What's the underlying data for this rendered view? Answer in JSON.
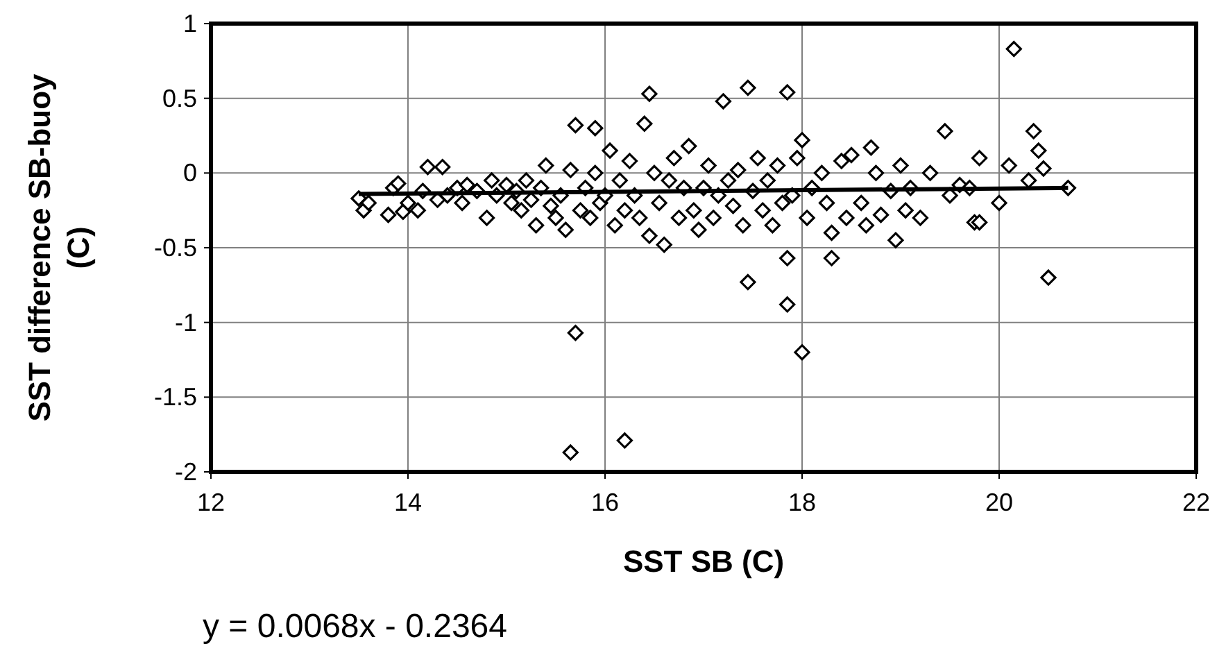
{
  "chart_data": {
    "type": "scatter",
    "xlabel": "SST SB (C)",
    "ylabel": "SST difference SB-buoy (C)",
    "annotations": [
      "y = 0.0068x - 0.2364"
    ],
    "xlim": [
      12,
      22
    ],
    "ylim": [
      -2,
      1
    ],
    "xticks": [
      12,
      14,
      16,
      18,
      20,
      22
    ],
    "yticks": [
      -2,
      -1.5,
      -1,
      -0.5,
      0,
      0.5,
      1
    ],
    "grid": true,
    "series": [
      {
        "marker": "diamond",
        "color": "#000000",
        "x": [
          13.5,
          13.55,
          13.6,
          13.8,
          13.85,
          13.9,
          13.95,
          14.0,
          14.1,
          14.15,
          14.2,
          14.3,
          14.35,
          14.4,
          14.5,
          14.55,
          14.6,
          14.7,
          14.8,
          14.85,
          14.9,
          15.0,
          15.05,
          15.1,
          15.15,
          15.2,
          15.25,
          15.3,
          15.35,
          15.4,
          15.45,
          15.5,
          15.55,
          15.6,
          15.65,
          15.65,
          15.7,
          15.7,
          15.75,
          15.8,
          15.85,
          15.9,
          15.9,
          15.95,
          16.0,
          16.05,
          16.1,
          16.15,
          16.2,
          16.2,
          16.25,
          16.3,
          16.35,
          16.4,
          16.45,
          16.45,
          16.5,
          16.55,
          16.6,
          16.65,
          16.7,
          16.75,
          16.8,
          16.85,
          16.9,
          16.95,
          17.0,
          17.05,
          17.1,
          17.15,
          17.2,
          17.25,
          17.3,
          17.35,
          17.4,
          17.45,
          17.45,
          17.5,
          17.55,
          17.6,
          17.65,
          17.7,
          17.75,
          17.8,
          17.85,
          17.85,
          17.85,
          17.9,
          17.95,
          18.0,
          18.0,
          18.05,
          18.1,
          18.2,
          18.25,
          18.3,
          18.3,
          18.4,
          18.45,
          18.5,
          18.6,
          18.65,
          18.7,
          18.75,
          18.8,
          18.9,
          18.95,
          19.0,
          19.05,
          19.1,
          19.2,
          19.3,
          19.45,
          19.5,
          19.6,
          19.7,
          19.75,
          19.8,
          19.8,
          20.0,
          20.1,
          20.15,
          20.3,
          20.35,
          20.4,
          20.45,
          20.5,
          20.7
        ],
        "values": [
          -0.17,
          -0.25,
          -0.2,
          -0.28,
          -0.1,
          -0.07,
          -0.26,
          -0.2,
          -0.25,
          -0.12,
          0.04,
          -0.18,
          0.04,
          -0.15,
          -0.1,
          -0.2,
          -0.08,
          -0.12,
          -0.3,
          -0.05,
          -0.15,
          -0.08,
          -0.2,
          -0.12,
          -0.25,
          -0.05,
          -0.18,
          -0.35,
          -0.1,
          0.05,
          -0.22,
          -0.3,
          -0.15,
          -0.38,
          -1.87,
          0.02,
          0.32,
          -1.07,
          -0.25,
          -0.1,
          -0.3,
          0.3,
          0.0,
          -0.2,
          -0.15,
          0.15,
          -0.35,
          -0.05,
          -1.79,
          -0.25,
          0.08,
          -0.15,
          -0.3,
          0.33,
          0.53,
          -0.42,
          0.0,
          -0.2,
          -0.48,
          -0.05,
          0.1,
          -0.3,
          -0.1,
          0.18,
          -0.25,
          -0.38,
          -0.1,
          0.05,
          -0.3,
          -0.15,
          0.48,
          -0.05,
          -0.22,
          0.02,
          -0.35,
          0.57,
          -0.73,
          -0.12,
          0.1,
          -0.25,
          -0.05,
          -0.35,
          0.05,
          -0.2,
          0.54,
          -0.57,
          -0.88,
          -0.15,
          0.1,
          -1.2,
          0.22,
          -0.3,
          -0.1,
          0.0,
          -0.2,
          -0.57,
          -0.4,
          0.08,
          -0.3,
          0.12,
          -0.2,
          -0.35,
          0.17,
          0.0,
          -0.28,
          -0.12,
          -0.45,
          0.05,
          -0.25,
          -0.1,
          -0.3,
          0.0,
          0.28,
          -0.15,
          -0.08,
          -0.1,
          -0.33,
          0.1,
          -0.33,
          -0.2,
          0.05,
          0.83,
          -0.05,
          0.28,
          0.15,
          0.03,
          -0.7,
          -0.1
        ]
      },
      {
        "type": "line",
        "color": "#000000",
        "x": [
          13.5,
          20.7
        ],
        "values": [
          -0.14,
          -0.1
        ]
      }
    ]
  }
}
